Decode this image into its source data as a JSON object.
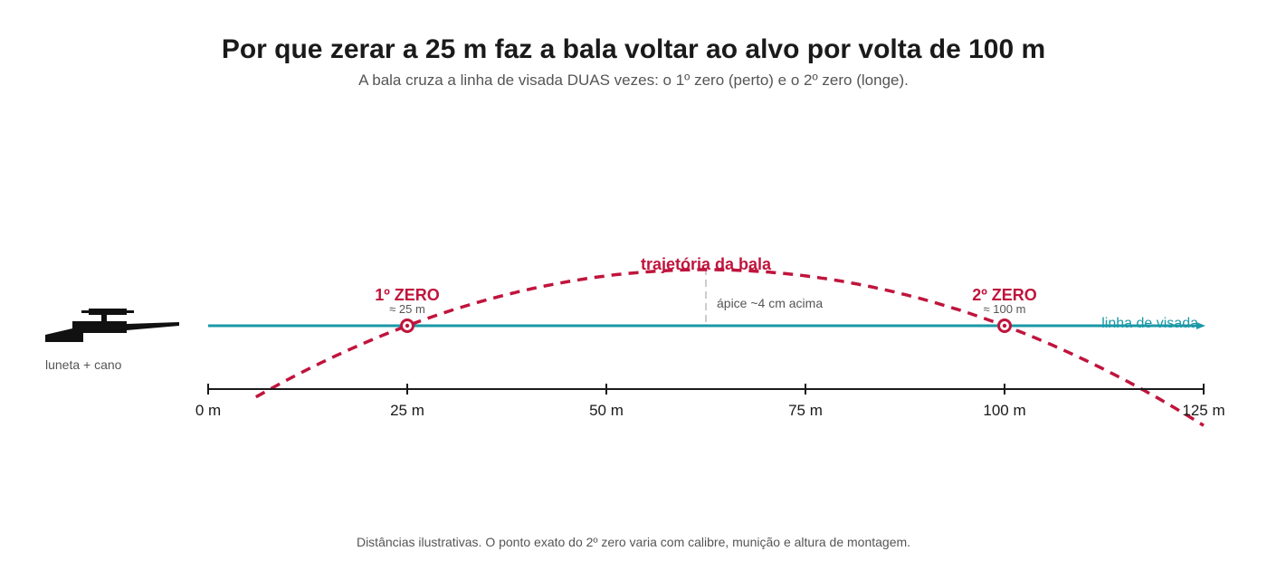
{
  "title": "Por que zerar a 25 m faz a bala voltar ao alvo por volta de 100 m",
  "subtitle": "A bala cruza a linha de visada DUAS vezes: o 1º zero (perto) e o 2º zero (longe).",
  "footnote": "Distâncias ilustrativas. O ponto exato do 2º zero varia com calibre, munição e altura de montagem.",
  "rifle_label": "luneta + cano",
  "line_of_sight_label": "linha de visada",
  "trajectory_label": "trajetória da bala",
  "apex_label": "ápice ~4 cm acima",
  "zero1": {
    "title": "1º ZERO",
    "sub": "≈ 25 m"
  },
  "zero2": {
    "title": "2º ZERO",
    "sub": "≈ 100 m"
  },
  "axis_ticks": [
    "0 m",
    "25 m",
    "50 m",
    "75 m",
    "100 m",
    "125 m"
  ],
  "colors": {
    "trajectory": "#c0143c",
    "line_of_sight": "#1a98a6",
    "axis": "#1a1a1a",
    "apex_guide": "#cccccc",
    "text_muted": "#555555"
  },
  "chart_data": {
    "type": "line",
    "x_unit": "m",
    "xlim": [
      0,
      125
    ],
    "x_ticks": [
      0,
      25,
      50,
      75,
      100,
      125
    ],
    "zero_points": [
      25,
      100
    ],
    "apex_x": 62.5,
    "apex_height_cm": 4,
    "series": [
      {
        "values_note": "",
        "x": [
          6,
          12.5,
          25,
          37.5,
          50,
          62.5,
          75,
          87.5,
          100,
          112.5,
          125
        ],
        "y": [
          -4.4,
          -2.7,
          0,
          2.1,
          3.5,
          4,
          3.5,
          2.1,
          0,
          -2.7,
          -6.5
        ]
      }
    ]
  }
}
